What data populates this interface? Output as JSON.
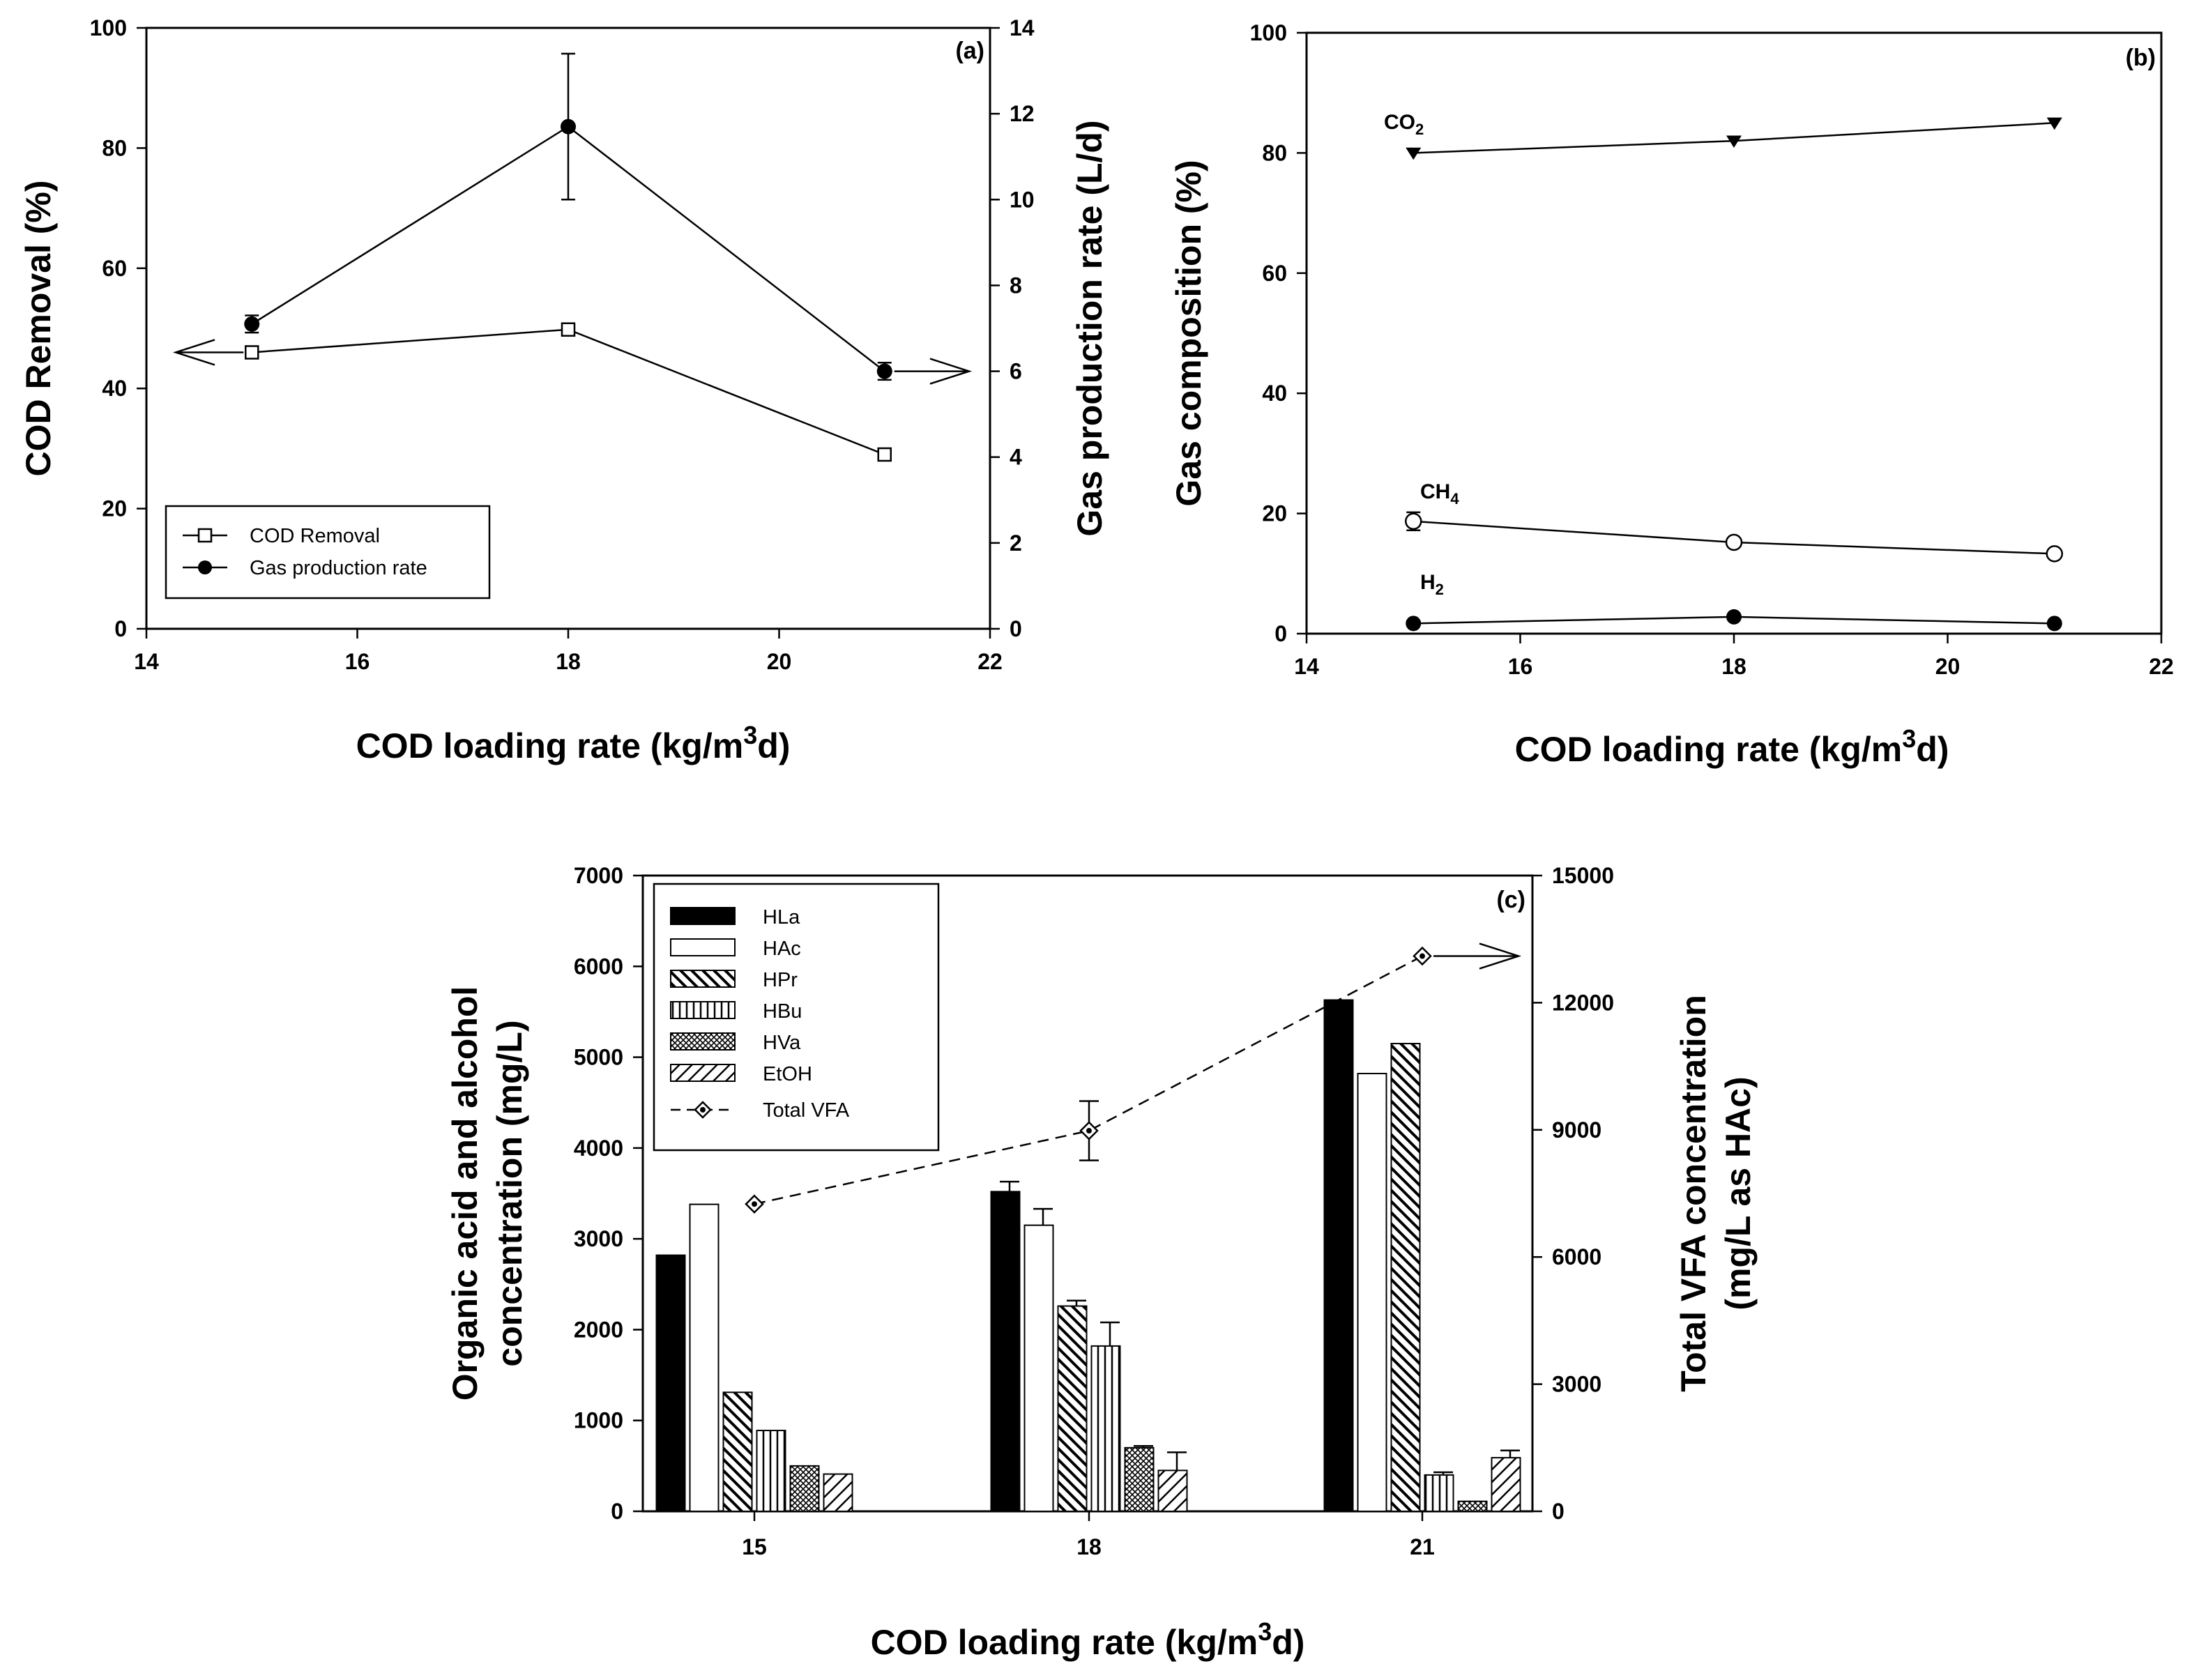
{
  "chart_data": [
    {
      "panel": "(a)",
      "type": "line",
      "xlabel": "COD loading rate (kg/m3d)",
      "xlabel_parts": [
        "COD loading rate (kg/m",
        "3",
        "d)"
      ],
      "ylabel": "COD Removal (%)",
      "y2label": "Gas production rate (L/d)",
      "xlim": [
        14,
        22
      ],
      "xticks": [
        14,
        16,
        18,
        20,
        22
      ],
      "ylim": [
        0,
        100
      ],
      "yticks": [
        0,
        20,
        40,
        60,
        80,
        100
      ],
      "y2lim": [
        0,
        14
      ],
      "y2ticks": [
        0,
        2,
        4,
        6,
        8,
        10,
        12,
        14
      ],
      "legend_position": "bottom-left",
      "series": [
        {
          "name": "COD Removal",
          "axis": "left",
          "marker": "open-square",
          "x": [
            15,
            18,
            21
          ],
          "values": [
            46,
            49.8,
            29
          ],
          "err": [
            0.8,
            0.8,
            0.8
          ]
        },
        {
          "name": "Gas production rate",
          "axis": "right",
          "marker": "filled-circle",
          "x": [
            15,
            18,
            21
          ],
          "values": [
            7.1,
            11.7,
            6.0
          ],
          "err": [
            0.2,
            1.7,
            0.2
          ]
        }
      ],
      "arrows": [
        {
          "series": "COD Removal",
          "direction": "left"
        },
        {
          "series": "Gas production rate",
          "direction": "right"
        }
      ]
    },
    {
      "panel": "(b)",
      "type": "line",
      "xlabel": "COD loading rate (kg/m3d)",
      "xlabel_parts": [
        "COD loading rate (kg/m",
        "3",
        "d)"
      ],
      "ylabel": "Gas composition (%)",
      "xlim": [
        14,
        22
      ],
      "xticks": [
        14,
        16,
        18,
        20,
        22
      ],
      "ylim": [
        0,
        100
      ],
      "yticks": [
        0,
        20,
        40,
        60,
        80,
        100
      ],
      "series": [
        {
          "name": "CO2",
          "label_base": "CO",
          "label_sub": "2",
          "marker": "filled-triangle-down",
          "x": [
            15,
            18,
            21
          ],
          "values": [
            80,
            82,
            85
          ],
          "err": [
            0.5,
            0.5,
            0.5
          ]
        },
        {
          "name": "CH4",
          "label_base": "CH",
          "label_sub": "4",
          "marker": "open-circle",
          "x": [
            15,
            18,
            21
          ],
          "values": [
            18.7,
            15.2,
            13.3
          ],
          "err": [
            1.5,
            0.4,
            0.4
          ]
        },
        {
          "name": "H2",
          "label_base": "H",
          "label_sub": "2",
          "marker": "filled-circle",
          "x": [
            15,
            18,
            21
          ],
          "values": [
            1.7,
            2.8,
            1.7
          ],
          "err": [
            0.2,
            0.2,
            0.2
          ]
        }
      ]
    },
    {
      "panel": "(c)",
      "type": "bar",
      "xlabel": "COD loading rate (kg/m3d)",
      "xlabel_parts": [
        "COD loading rate (kg/m",
        "3",
        "d)"
      ],
      "ylabel": "Organic acid and alcohol concentration (mg/L)",
      "ylabel_lines": [
        "Organic acid and alcohol",
        "concentration (mg/L)"
      ],
      "y2label": "Total VFA concentration (mg/L as HAc)",
      "y2label_lines": [
        "Total VFA concentration",
        "(mg/L as HAc)"
      ],
      "categories": [
        "15",
        "18",
        "21"
      ],
      "ylim": [
        0,
        7000
      ],
      "yticks": [
        0,
        1000,
        2000,
        3000,
        4000,
        5000,
        6000,
        7000
      ],
      "y2lim": [
        0,
        15000
      ],
      "y2ticks": [
        0,
        3000,
        6000,
        9000,
        12000,
        15000
      ],
      "legend_position": "top-left",
      "series": [
        {
          "name": "HLa",
          "pattern": "solid",
          "values": [
            2820,
            3520,
            5630
          ],
          "err": [
            0,
            110,
            0
          ]
        },
        {
          "name": "HAc",
          "pattern": "open",
          "values": [
            3380,
            3150,
            4820
          ],
          "err": [
            0,
            180,
            0
          ]
        },
        {
          "name": "HPr",
          "pattern": "diag-back",
          "values": [
            1310,
            2260,
            5150
          ],
          "err": [
            0,
            60,
            0
          ]
        },
        {
          "name": "HBu",
          "pattern": "vertical",
          "values": [
            890,
            1820,
            400
          ],
          "err": [
            0,
            260,
            30
          ]
        },
        {
          "name": "HVa",
          "pattern": "crosshatch",
          "values": [
            500,
            700,
            110
          ],
          "err": [
            0,
            20,
            0
          ]
        },
        {
          "name": "EtOH",
          "pattern": "diag-forward",
          "values": [
            410,
            450,
            590
          ],
          "err": [
            0,
            200,
            80
          ]
        }
      ],
      "line_series": {
        "name": "Total VFA",
        "axis": "right",
        "marker": "diamond-dot",
        "style": "dashed",
        "values": [
          7250,
          8980,
          13100
        ],
        "err": [
          0,
          700,
          0
        ],
        "arrow": "right"
      }
    }
  ]
}
